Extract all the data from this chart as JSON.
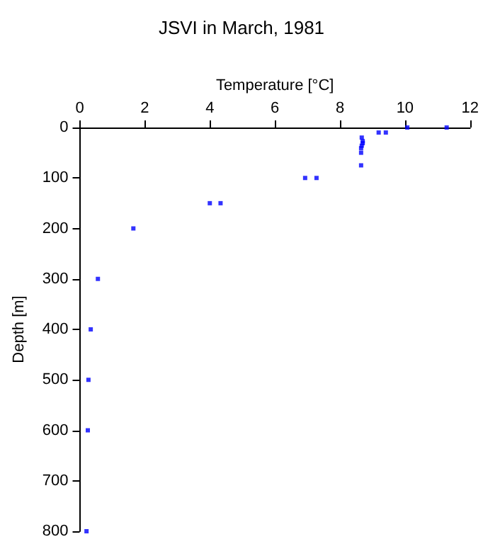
{
  "chart_data": {
    "type": "scatter",
    "title": "JSVI in March, 1981",
    "xlabel": "Temperature [°C]",
    "ylabel": "Depth [m]",
    "xlim": [
      0,
      12
    ],
    "xticks": [
      0,
      2,
      4,
      6,
      8,
      10,
      12
    ],
    "ylim": [
      800,
      0
    ],
    "yticks": [
      0,
      100,
      200,
      300,
      400,
      500,
      600,
      700,
      800
    ],
    "grid": false,
    "marker": "square",
    "series": [
      {
        "color": "#0000ff",
        "x": [
          10.07,
          11.28,
          9.19,
          9.41,
          8.67,
          8.7,
          8.7,
          8.67,
          8.65,
          8.65,
          8.65,
          6.93,
          7.28,
          4.0,
          4.33,
          1.65,
          0.56,
          0.34,
          0.27,
          0.25,
          0.21
        ],
        "values": [
          0,
          0,
          10,
          10,
          20,
          27,
          31,
          36,
          41,
          50,
          75,
          100,
          100,
          150,
          150,
          200,
          300,
          400,
          500,
          600,
          800
        ]
      }
    ]
  }
}
